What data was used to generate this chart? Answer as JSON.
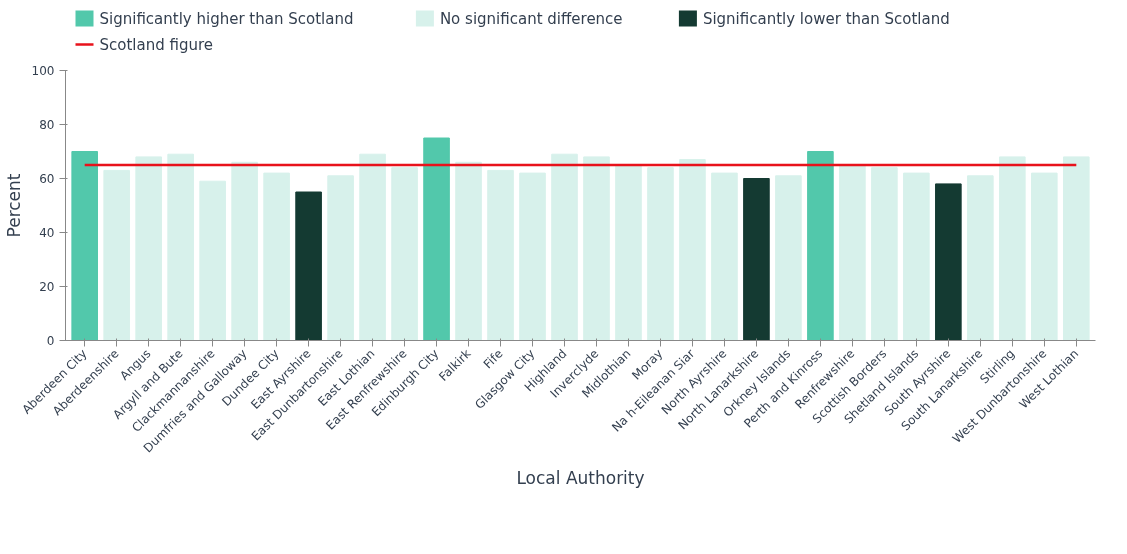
{
  "chart_data": {
    "type": "bar",
    "xlabel": "Local Authority",
    "ylabel": "Percent",
    "categories": [
      "Aberdeen City",
      "Aberdeenshire",
      "Angus",
      "Argyll and Bute",
      "Clackmannanshire",
      "Dumfries and Galloway",
      "Dundee City",
      "East Ayrshire",
      "East Dunbartonshire",
      "East Lothian",
      "East Renfrewshire",
      "Edinburgh City",
      "Falkirk",
      "Fife",
      "Glasgow City",
      "Highland",
      "Inverclyde",
      "Midlothian",
      "Moray",
      "Na h-Eileanan Siar",
      "North Ayrshire",
      "North Lanarkshire",
      "Orkney Islands",
      "Perth and Kinross",
      "Renfrewshire",
      "Scottish Borders",
      "Shetland Islands",
      "South Ayrshire",
      "South Lanarkshire",
      "Stirling",
      "West Dunbartonshire",
      "West Lothian"
    ],
    "stacked": true,
    "series": [
      {
        "name": "Significantly higher than Scotland",
        "color": "#52c8ab",
        "values": [
          70,
          null,
          null,
          null,
          null,
          null,
          null,
          null,
          null,
          null,
          null,
          75,
          null,
          null,
          null,
          null,
          null,
          null,
          null,
          null,
          null,
          null,
          null,
          70,
          null,
          null,
          null,
          null,
          null,
          null,
          null,
          null
        ]
      },
      {
        "name": "No significant difference",
        "color": "#d7f1eb",
        "values": [
          null,
          63,
          68,
          69,
          59,
          66,
          62,
          null,
          61,
          69,
          64,
          null,
          66,
          63,
          62,
          69,
          68,
          65,
          64,
          67,
          62,
          null,
          61,
          null,
          65,
          64,
          62,
          null,
          61,
          68,
          62,
          68
        ]
      },
      {
        "name": "Significantly lower than Scotland",
        "color": "#143a32",
        "values": [
          null,
          null,
          null,
          null,
          null,
          null,
          null,
          55,
          null,
          null,
          null,
          null,
          null,
          null,
          null,
          null,
          null,
          null,
          null,
          null,
          null,
          60,
          null,
          null,
          null,
          null,
          null,
          58,
          null,
          null,
          null,
          null
        ]
      },
      {
        "name": "Scotland figure",
        "type": "line",
        "color": "#e8121b",
        "values": [
          65,
          65,
          65,
          65,
          65,
          65,
          65,
          65,
          65,
          65,
          65,
          65,
          65,
          65,
          65,
          65,
          65,
          65,
          65,
          65,
          65,
          65,
          65,
          65,
          65,
          65,
          65,
          65,
          65,
          65,
          65,
          65
        ]
      }
    ],
    "ylim": [
      0,
      100
    ],
    "yticks": [
      0,
      20,
      40,
      60,
      80,
      100
    ],
    "grid": false,
    "legend": "top left"
  }
}
